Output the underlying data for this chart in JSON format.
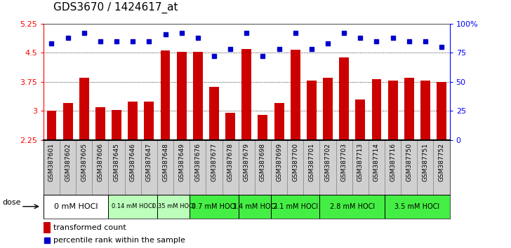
{
  "title": "GDS3670 / 1424617_at",
  "samples": [
    "GSM387601",
    "GSM387602",
    "GSM387605",
    "GSM387606",
    "GSM387645",
    "GSM387646",
    "GSM387647",
    "GSM387648",
    "GSM387649",
    "GSM387676",
    "GSM387677",
    "GSM387678",
    "GSM387679",
    "GSM387698",
    "GSM387699",
    "GSM387700",
    "GSM387701",
    "GSM387702",
    "GSM387703",
    "GSM387713",
    "GSM387714",
    "GSM387716",
    "GSM387750",
    "GSM387751",
    "GSM387752"
  ],
  "bar_values": [
    3.0,
    3.2,
    3.85,
    3.1,
    3.03,
    3.25,
    3.25,
    4.55,
    4.52,
    4.52,
    3.62,
    2.95,
    4.6,
    2.9,
    3.2,
    4.57,
    3.78,
    3.85,
    4.38,
    3.3,
    3.82,
    3.78,
    3.85,
    3.78,
    3.75
  ],
  "dot_values": [
    83,
    88,
    92,
    85,
    85,
    85,
    85,
    91,
    92,
    88,
    72,
    78,
    92,
    72,
    78,
    92,
    78,
    83,
    92,
    88,
    85,
    88,
    85,
    85,
    80
  ],
  "ylim_left": [
    2.25,
    5.25
  ],
  "ylim_right": [
    0,
    100
  ],
  "yticks_left": [
    2.25,
    3.0,
    3.75,
    4.5,
    5.25
  ],
  "ytick_labels_left": [
    "2.25",
    "3",
    "3.75",
    "4.5",
    "5.25"
  ],
  "yticks_right": [
    0,
    25,
    50,
    75,
    100
  ],
  "ytick_labels_right": [
    "0",
    "25",
    "50",
    "75",
    "100%"
  ],
  "bar_color": "#cc0000",
  "dot_color": "#0000cc",
  "groups": [
    {
      "label": "0 mM HOCl",
      "start": 0,
      "end": 4,
      "color": "#ffffff",
      "fontsize": 8
    },
    {
      "label": "0.14 mM HOCl",
      "start": 4,
      "end": 7,
      "color": "#bbffbb",
      "fontsize": 6
    },
    {
      "label": "0.35 mM HOCl",
      "start": 7,
      "end": 9,
      "color": "#bbffbb",
      "fontsize": 6
    },
    {
      "label": "0.7 mM HOCl",
      "start": 9,
      "end": 12,
      "color": "#44ee44",
      "fontsize": 7
    },
    {
      "label": "1.4 mM HOCl",
      "start": 12,
      "end": 14,
      "color": "#44ee44",
      "fontsize": 7
    },
    {
      "label": "2.1 mM HOCl",
      "start": 14,
      "end": 17,
      "color": "#44ee44",
      "fontsize": 7
    },
    {
      "label": "2.8 mM HOCl",
      "start": 17,
      "end": 21,
      "color": "#44ee44",
      "fontsize": 7
    },
    {
      "label": "3.5 mM HOCl",
      "start": 21,
      "end": 25,
      "color": "#44ee44",
      "fontsize": 7
    }
  ],
  "legend_bar_label": "transformed count",
  "legend_dot_label": "percentile rank within the sample",
  "dose_label": "dose"
}
